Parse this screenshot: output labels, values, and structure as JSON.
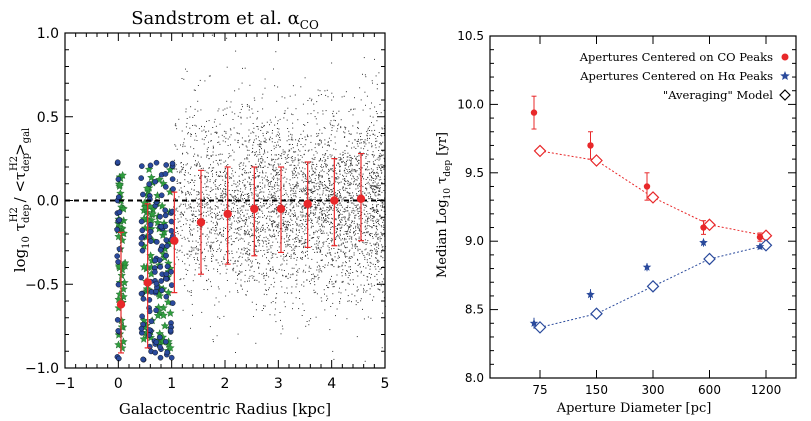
{
  "chart_data": [
    {
      "type": "scatter",
      "title": "Sandstrom et al. α",
      "title_sub": "CO",
      "xlabel": "Galactocentric Radius [kpc]",
      "ylabel_parts": {
        "log": "log",
        "log_sub": "10",
        "tau": " τ",
        "tau_sub": "dep",
        "tau_sup": "H2",
        "slash": " / <τ",
        "gal_sub": "dep",
        "gal_sup": "H2",
        "close": ">",
        "gal_last": "gal"
      },
      "xlim": [
        -1,
        5
      ],
      "ylim": [
        -1.0,
        1.0
      ],
      "xticks": [
        "−1",
        "0",
        "1",
        "2",
        "3",
        "4",
        "5"
      ],
      "yticks": [
        "−1.0",
        "−0.5",
        "0.0",
        "0.5",
        "1.0"
      ],
      "reference_line": {
        "y": 0.0,
        "style": "dashed"
      },
      "medians": {
        "color": "#e8282a",
        "points": [
          {
            "x": 0.05,
            "y": -0.62,
            "lo": -0.91,
            "hi": -0.19
          },
          {
            "x": 0.55,
            "y": -0.49,
            "lo": -0.88,
            "hi": -0.02
          },
          {
            "x": 1.05,
            "y": -0.24,
            "lo": -0.55,
            "hi": 0.05
          },
          {
            "x": 1.55,
            "y": -0.13,
            "lo": -0.44,
            "hi": 0.18
          },
          {
            "x": 2.05,
            "y": -0.08,
            "lo": -0.38,
            "hi": 0.2
          },
          {
            "x": 2.55,
            "y": -0.05,
            "lo": -0.33,
            "hi": 0.2
          },
          {
            "x": 3.05,
            "y": -0.05,
            "lo": -0.31,
            "hi": 0.2
          },
          {
            "x": 3.55,
            "y": -0.02,
            "lo": -0.28,
            "hi": 0.23
          },
          {
            "x": 4.05,
            "y": 0.0,
            "lo": -0.27,
            "hi": 0.25
          },
          {
            "x": 4.55,
            "y": 0.01,
            "lo": -0.24,
            "hi": 0.28
          }
        ]
      },
      "stars_color": "#2f9e3f",
      "circles_color": "#2a4a9c",
      "scatter_color": "#333333"
    },
    {
      "type": "line",
      "xlabel": "Aperture Diameter [pc]",
      "ylabel_parts": {
        "pre": "Median Log",
        "log_sub": "10",
        "tau": " τ",
        "tau_sub": "dep",
        "post": " [yr]"
      },
      "categories": [
        "75",
        "150",
        "300",
        "600",
        "1200"
      ],
      "ylim": [
        8.0,
        10.5
      ],
      "yticks": [
        "8.0",
        "8.5",
        "9.0",
        "9.5",
        "10.0",
        "10.5"
      ],
      "legend_position": "top-right",
      "series": [
        {
          "name": "Apertures Centered on CO Peaks",
          "marker": "circle",
          "color": "#e8282a",
          "values": [
            9.94,
            9.7,
            9.4,
            9.1,
            9.03
          ],
          "err": [
            0.12,
            0.1,
            0.1,
            0.05,
            0.03
          ]
        },
        {
          "name": "Apertures Centered on Hα Peaks",
          "marker": "star",
          "color": "#2a4a9c",
          "values": [
            8.4,
            8.61,
            8.81,
            8.99,
            8.96
          ],
          "err": [
            0.04,
            0.04,
            0.03,
            0.03,
            0.02
          ]
        },
        {
          "name": "\"Averaging\" Model",
          "marker": "diamond",
          "color": "#000000",
          "values_upper": [
            9.66,
            9.59,
            9.32,
            9.12,
            9.04
          ],
          "values_lower": [
            8.37,
            8.47,
            8.67,
            8.87,
            8.97
          ],
          "upper_color": "#e8282a",
          "lower_color": "#2a4a9c"
        }
      ]
    }
  ]
}
